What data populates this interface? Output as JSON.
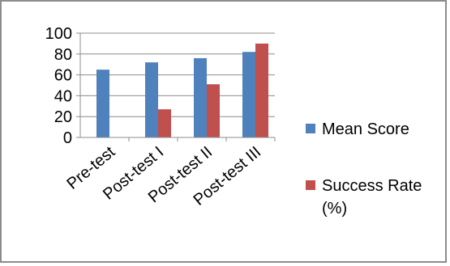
{
  "chart_data": {
    "type": "bar",
    "categories": [
      "Pre-test",
      "Post-test I",
      "Post-test II",
      "Post-test III"
    ],
    "series": [
      {
        "name": "Mean Score",
        "values": [
          65,
          72,
          76,
          82
        ],
        "color": "#4f81bd"
      },
      {
        "name": "Success Rate (%)",
        "values": [
          null,
          27,
          51,
          90
        ],
        "color": "#c0504d"
      }
    ],
    "ylim": [
      0,
      100
    ],
    "yticks": [
      0,
      20,
      40,
      60,
      80,
      100
    ],
    "grid": true,
    "legend_position": "right",
    "legend_labels": [
      "Mean Score",
      "Success Rate",
      "(%)"
    ],
    "title": "",
    "xlabel": "",
    "ylabel": ""
  }
}
